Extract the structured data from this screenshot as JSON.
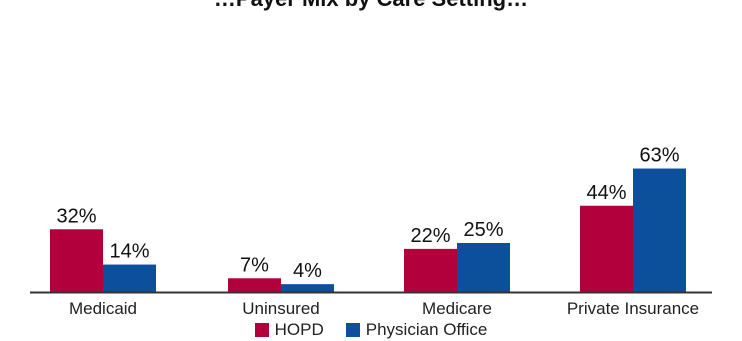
{
  "title": "…Payer Mix by Care Setting…",
  "chart_data": {
    "type": "bar",
    "title": "",
    "categories": [
      "Medicaid",
      "Uninsured",
      "Medicare",
      "Private Insurance"
    ],
    "series": [
      {
        "name": "HOPD",
        "values": [
          32,
          7,
          22,
          44
        ],
        "labels": [
          "32%",
          "7%",
          "22%",
          "44%"
        ],
        "color": "#b2003c"
      },
      {
        "name": "Physician Office",
        "values": [
          14,
          4,
          25,
          63
        ],
        "labels": [
          "14%",
          "4%",
          "25%",
          "63%"
        ],
        "color": "#0c4f9b"
      }
    ],
    "xlabel": "",
    "ylabel": "",
    "ylim": [
      0,
      70
    ],
    "grid": false,
    "legend_position": "bottom"
  }
}
